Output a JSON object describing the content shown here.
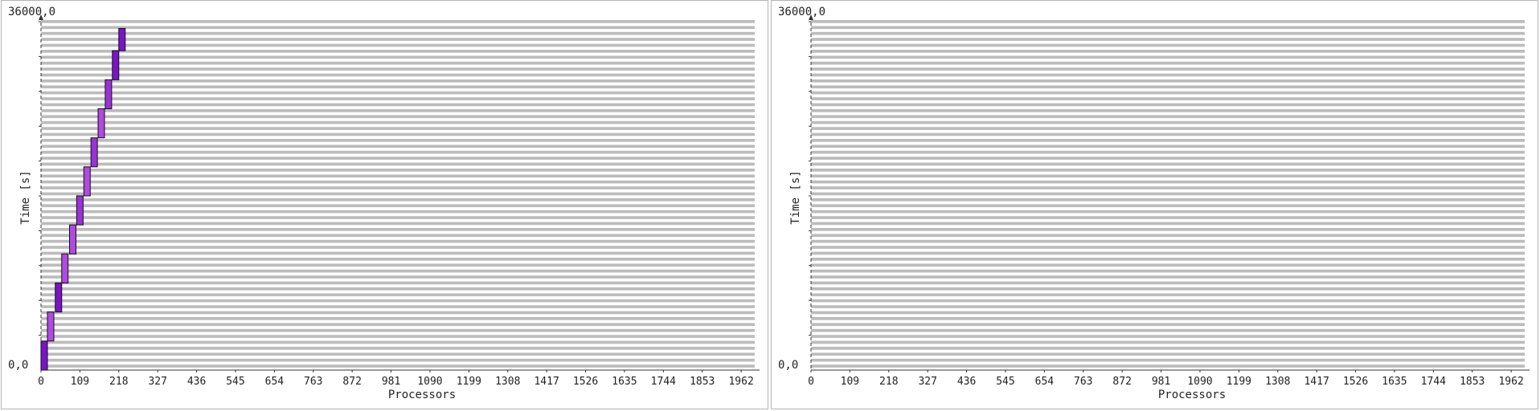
{
  "chart_data": [
    {
      "type": "gantt",
      "ylabel": "Time [s]",
      "xlabel": "Processors",
      "ymax_label": "36000,0",
      "ymin_label": "0,0",
      "ylim": [
        0,
        36000
      ],
      "xlim": [
        0,
        2000
      ],
      "x_ticks": [
        0,
        109,
        218,
        327,
        436,
        545,
        654,
        763,
        872,
        981,
        1090,
        1199,
        1308,
        1417,
        1526,
        1635,
        1744,
        1853,
        1962
      ],
      "grid": true,
      "jobs": [
        {
          "proc_start": 0,
          "proc_end": 18,
          "t_start": 0,
          "t_end": 3000,
          "color": "#7a14c8"
        },
        {
          "proc_start": 18,
          "proc_end": 36,
          "t_start": 3000,
          "t_end": 6000,
          "color": "#b04ae0"
        },
        {
          "proc_start": 40,
          "proc_end": 58,
          "t_start": 6000,
          "t_end": 9000,
          "color": "#7a14c8"
        },
        {
          "proc_start": 58,
          "proc_end": 76,
          "t_start": 9000,
          "t_end": 12000,
          "color": "#b04ae0"
        },
        {
          "proc_start": 80,
          "proc_end": 98,
          "t_start": 12000,
          "t_end": 15000,
          "color": "#b04ae0"
        },
        {
          "proc_start": 100,
          "proc_end": 118,
          "t_start": 15000,
          "t_end": 18000,
          "color": "#9a32d8"
        },
        {
          "proc_start": 120,
          "proc_end": 138,
          "t_start": 18000,
          "t_end": 21000,
          "color": "#b04ae0"
        },
        {
          "proc_start": 140,
          "proc_end": 158,
          "t_start": 21000,
          "t_end": 24000,
          "color": "#9a32d8"
        },
        {
          "proc_start": 160,
          "proc_end": 178,
          "t_start": 24000,
          "t_end": 27000,
          "color": "#b04ae0"
        },
        {
          "proc_start": 180,
          "proc_end": 198,
          "t_start": 27000,
          "t_end": 30000,
          "color": "#9a32d8"
        },
        {
          "proc_start": 200,
          "proc_end": 218,
          "t_start": 30000,
          "t_end": 33000,
          "color": "#7a14c8"
        },
        {
          "proc_start": 218,
          "proc_end": 236,
          "t_start": 33000,
          "t_end": 35300,
          "color": "#7a14c8"
        }
      ]
    },
    {
      "type": "gantt",
      "ylabel": "Time [s]",
      "xlabel": "Processors",
      "ymax_label": "36000,0",
      "ymin_label": "0,0",
      "ylim": [
        0,
        36000
      ],
      "xlim": [
        0,
        2000
      ],
      "x_ticks": [
        0,
        109,
        218,
        327,
        436,
        545,
        654,
        763,
        872,
        981,
        1090,
        1199,
        1308,
        1417,
        1526,
        1635,
        1744,
        1853,
        1962
      ],
      "grid": true,
      "jobs": []
    }
  ]
}
